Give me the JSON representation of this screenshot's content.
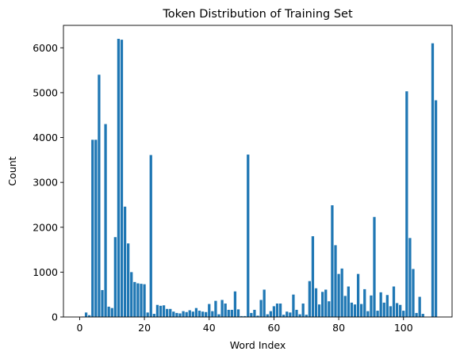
{
  "chart_data": {
    "type": "bar",
    "title": "Token Distribution of Training Set",
    "xlabel": "Word Index",
    "ylabel": "Count",
    "xlim": [
      -5,
      115
    ],
    "ylim": [
      0,
      6500
    ],
    "xticks": [
      0,
      20,
      40,
      60,
      80,
      100
    ],
    "yticks": [
      0,
      1000,
      2000,
      3000,
      4000,
      5000,
      6000
    ],
    "grid": false,
    "legend": "none",
    "bar_color": "#1f77b4",
    "x": [
      0,
      1,
      2,
      3,
      4,
      5,
      6,
      7,
      8,
      9,
      10,
      11,
      12,
      13,
      14,
      15,
      16,
      17,
      18,
      19,
      20,
      21,
      22,
      23,
      24,
      25,
      26,
      27,
      28,
      29,
      30,
      31,
      32,
      33,
      34,
      35,
      36,
      37,
      38,
      39,
      40,
      41,
      42,
      43,
      44,
      45,
      46,
      47,
      48,
      49,
      50,
      51,
      52,
      53,
      54,
      55,
      56,
      57,
      58,
      59,
      60,
      61,
      62,
      63,
      64,
      65,
      66,
      67,
      68,
      69,
      70,
      71,
      72,
      73,
      74,
      75,
      76,
      77,
      78,
      79,
      80,
      81,
      82,
      83,
      84,
      85,
      86,
      87,
      88,
      89,
      90,
      91,
      92,
      93,
      94,
      95,
      96,
      97,
      98,
      99,
      100,
      101,
      102,
      103,
      104,
      105,
      106,
      107,
      108,
      109,
      110
    ],
    "values": [
      0,
      10,
      100,
      40,
      3950,
      3950,
      5400,
      600,
      4300,
      230,
      200,
      1780,
      6200,
      6180,
      2460,
      1640,
      1000,
      780,
      750,
      740,
      730,
      100,
      3610,
      70,
      270,
      250,
      260,
      180,
      180,
      120,
      90,
      80,
      130,
      110,
      150,
      120,
      200,
      140,
      120,
      110,
      290,
      130,
      360,
      60,
      380,
      300,
      160,
      160,
      570,
      170,
      20,
      20,
      3620,
      90,
      160,
      30,
      380,
      610,
      60,
      130,
      240,
      300,
      300,
      50,
      120,
      100,
      500,
      160,
      60,
      300,
      50,
      800,
      1800,
      640,
      280,
      560,
      610,
      350,
      2490,
      1600,
      960,
      1080,
      470,
      680,
      320,
      280,
      960,
      290,
      620,
      130,
      480,
      2230,
      140,
      550,
      320,
      490,
      240,
      680,
      310,
      270,
      140,
      5030,
      1760,
      1070,
      90,
      450,
      70,
      0,
      0,
      6100,
      4830
    ]
  }
}
